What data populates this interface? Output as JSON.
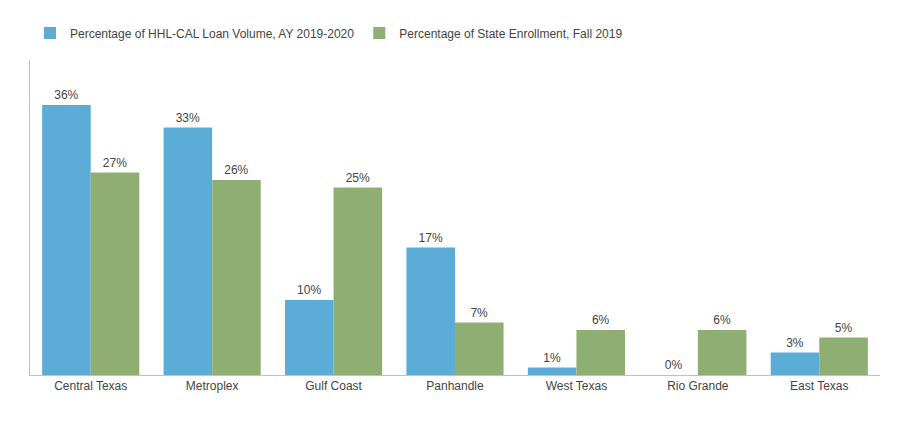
{
  "chart_data": {
    "type": "bar",
    "categories": [
      "Central Texas",
      "Metroplex",
      "Gulf Coast",
      "Panhandle",
      "West Texas",
      "Rio Grande",
      "East Texas"
    ],
    "series": [
      {
        "name": "Percentage of HHL-CAL Loan Volume, AY 2019-2020",
        "color": "#5BACD6",
        "values": [
          36,
          33,
          10,
          17,
          1,
          0,
          3
        ],
        "value_labels": [
          "36%",
          "33%",
          "10%",
          "17%",
          "1%",
          "0%",
          "3%"
        ]
      },
      {
        "name": "Percentage of State Enrollment, Fall 2019",
        "color": "#8FAF72",
        "values": [
          27,
          26,
          25,
          7,
          6,
          6,
          5
        ],
        "value_labels": [
          "27%",
          "26%",
          "25%",
          "7%",
          "6%",
          "6%",
          "5%"
        ]
      }
    ],
    "ylim": [
      0,
      42
    ],
    "grid": false,
    "legend": "upper left",
    "data_labels": true,
    "tick_labels": "x"
  }
}
